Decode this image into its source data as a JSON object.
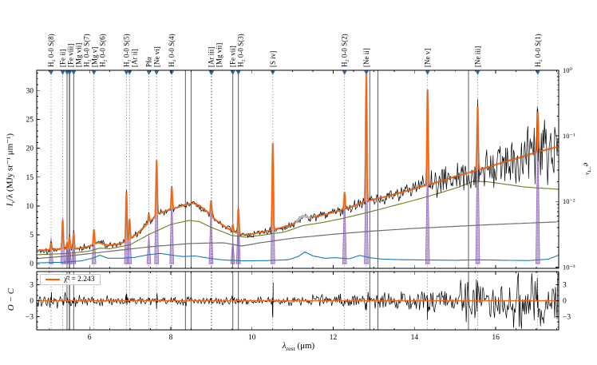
{
  "labels": {
    "xlabel": {
      "main": "λ",
      "sub": "rest",
      "unit": " (μm)"
    },
    "ylabel_main": {
      "pre": "I",
      "sub": "ν",
      "post": "/λ (MJy sr⁻¹ μm⁻¹)"
    },
    "ylabel_resid": "O − C",
    "ylabel_right": {
      "pre": "e",
      "sup": "−τ",
      "supsub": "λ"
    }
  },
  "legend": {
    "label": "χ̄² = 2.243"
  },
  "colors": {
    "data": "#000000",
    "model": "#ff6100",
    "model_masked": "#b9b9b9",
    "component_olive": "#6d7d22",
    "component_blue": "#1f77b4",
    "component_purple": "#9467bd",
    "attenuation": "#6e6e6e",
    "line_marker": "#3465a4",
    "vline_dotted": "#8a8a8a",
    "vline_solid": "#4a4a4a"
  },
  "chart_data": {
    "type": "line",
    "title": "",
    "xlabel": "λ_rest (μm)",
    "ylabel_left": "I_ν/λ (MJy sr⁻¹ μm⁻¹)",
    "ylabel_right": "e^−τ_λ",
    "ylabel_residual": "O − C",
    "xlim": [
      4.7,
      17.55
    ],
    "ylim_main": [
      -0.8,
      33.5
    ],
    "ylim_residual": [
      -5.5,
      5.5
    ],
    "right_axis_log_lim": [
      -3.02,
      0
    ],
    "x_ticks": [
      6,
      8,
      10,
      12,
      14,
      16
    ],
    "y_ticks_main": [
      0,
      5,
      10,
      15,
      20,
      25,
      30
    ],
    "y_ticks_residual": [
      -3,
      0,
      3
    ],
    "right_ticks": [
      "10⁰",
      "10⁻¹",
      "10⁻²",
      "10⁻³"
    ],
    "right_ticks_exponents": [
      0,
      -1,
      -2,
      -3
    ],
    "chi2": 2.243,
    "emission_lines": [
      {
        "label": "H₂ 0-0 S(8)",
        "wavelength": 5.053,
        "style": "dotted",
        "model_amp": 1.2,
        "line_peak": 4.5
      },
      {
        "label": "[Fe ii]",
        "wavelength": 5.34,
        "style": "dotted",
        "model_amp": 5.0,
        "line_peak": 8.0
      },
      {
        "label": "[Fe viii]",
        "wavelength": 5.447,
        "style": "solid",
        "model_amp": 1.0,
        "line_peak": 3.5
      },
      {
        "label": "[Mg vii]",
        "wavelength": 5.503,
        "style": "solid",
        "model_amp": 1.2,
        "line_peak": 4.0
      },
      {
        "label": "H₂ 0-0 S(7)",
        "wavelength": 5.511,
        "style": "solid",
        "model_amp": 1.0,
        "line_peak": 0
      },
      {
        "label": "[Mg v]",
        "wavelength": 5.61,
        "style": "solid",
        "model_amp": 2.8,
        "line_peak": 6.0
      },
      {
        "label": "H₂ 0-0 S(6)",
        "wavelength": 6.109,
        "style": "dotted",
        "model_amp": 2.6,
        "line_peak": 5.8
      },
      {
        "label": "H₂ 0-0 S(5)",
        "wavelength": 6.909,
        "style": "dotted",
        "model_amp": 8.5,
        "line_peak": 11.5
      },
      {
        "label": "[Ar ii]",
        "wavelength": 6.985,
        "style": "dotted",
        "model_amp": 3.5,
        "line_peak": 7.0
      },
      {
        "label": "Pfα",
        "wavelength": 7.46,
        "style": "dotted",
        "model_amp": 1.5,
        "line_peak": 5.0
      },
      {
        "label": "[Ne vi]",
        "wavelength": 7.652,
        "style": "dotted",
        "model_amp": 9.5,
        "line_peak": 18.0
      },
      {
        "label": "H₂ 0-0 S(4)",
        "wavelength": 8.025,
        "style": "dotted",
        "model_amp": 3.8,
        "line_peak": 12.8
      },
      {
        "label": "[Ar iii]",
        "wavelength": 8.991,
        "style": "dotted",
        "model_amp": 2.3,
        "line_peak": 10.2
      },
      {
        "label": "[Mg vii]",
        "wavelength": 9.009,
        "style": "dotted",
        "model_amp": 0.8,
        "line_peak": 0
      },
      {
        "label": "[Fe vii]",
        "wavelength": 9.527,
        "style": "solid",
        "model_amp": 1.0,
        "line_peak": 4.0
      },
      {
        "label": "H₂ 0-0 S(3)",
        "wavelength": 9.665,
        "style": "solid",
        "model_amp": 4.3,
        "line_peak": 9.4
      },
      {
        "label": "[S iv]",
        "wavelength": 10.511,
        "style": "dotted",
        "model_amp": 15.0,
        "line_peak": 20.7
      },
      {
        "label": "H₂ 0-0 S(2)",
        "wavelength": 12.279,
        "style": "dotted",
        "model_amp": 2.8,
        "line_peak": 12.2
      },
      {
        "label": "[Ne ii]",
        "wavelength": 12.814,
        "style": "dotted",
        "model_amp": 22.0,
        "line_peak": 21.5
      },
      {
        "label": "[Ne v]",
        "wavelength": 14.322,
        "style": "dotted",
        "model_amp": 16.5,
        "line_peak": 19.3
      },
      {
        "label": "[Ne iii]",
        "wavelength": 15.555,
        "style": "dotted",
        "model_amp": 11.0,
        "line_peak": 26.0
      },
      {
        "label": "H₂ 0-0 S(1)",
        "wavelength": 17.035,
        "style": "dotted",
        "model_amp": 7.0,
        "line_peak": 24.5
      }
    ],
    "extra_solid_lines": [
      8.36,
      8.5,
      12.9,
      13.1,
      15.33
    ],
    "masked_regions": [
      [
        11.08,
        11.45
      ]
    ],
    "model_continuum": [
      [
        4.7,
        2.3
      ],
      [
        5.0,
        2.4
      ],
      [
        5.3,
        2.55
      ],
      [
        5.7,
        2.6
      ],
      [
        6.0,
        3.0
      ],
      [
        6.22,
        3.7
      ],
      [
        6.45,
        3.2
      ],
      [
        6.7,
        3.35
      ],
      [
        6.95,
        4.0
      ],
      [
        7.2,
        5.4
      ],
      [
        7.5,
        7.4
      ],
      [
        7.7,
        8.7
      ],
      [
        7.9,
        9.2
      ],
      [
        8.1,
        9.6
      ],
      [
        8.3,
        10.1
      ],
      [
        8.55,
        10.5
      ],
      [
        8.7,
        10.1
      ],
      [
        8.9,
        9.0
      ],
      [
        9.1,
        7.6
      ],
      [
        9.4,
        6.1
      ],
      [
        9.7,
        5.1
      ],
      [
        9.9,
        5.0
      ],
      [
        10.1,
        5.3
      ],
      [
        10.4,
        5.7
      ],
      [
        10.7,
        6.2
      ],
      [
        11.0,
        6.8
      ],
      [
        11.25,
        8.3
      ],
      [
        11.4,
        8.0
      ],
      [
        11.6,
        8.2
      ],
      [
        11.9,
        8.7
      ],
      [
        12.2,
        9.3
      ],
      [
        12.5,
        10.0
      ],
      [
        12.8,
        10.8
      ],
      [
        13.1,
        11.3
      ],
      [
        13.4,
        11.8
      ],
      [
        13.8,
        12.6
      ],
      [
        14.2,
        13.4
      ],
      [
        14.6,
        14.2
      ],
      [
        15.0,
        15.1
      ],
      [
        15.4,
        15.9
      ],
      [
        15.8,
        16.7
      ],
      [
        16.2,
        17.6
      ],
      [
        16.6,
        18.4
      ],
      [
        17.0,
        19.3
      ],
      [
        17.55,
        20.3
      ]
    ],
    "component_olive": [
      [
        4.7,
        1.55
      ],
      [
        5.5,
        1.8
      ],
      [
        6.0,
        2.2
      ],
      [
        6.25,
        2.7
      ],
      [
        6.5,
        2.6
      ],
      [
        7.0,
        3.3
      ],
      [
        7.5,
        5.2
      ],
      [
        8.0,
        6.8
      ],
      [
        8.45,
        7.5
      ],
      [
        8.7,
        7.3
      ],
      [
        9.0,
        6.3
      ],
      [
        9.5,
        4.9
      ],
      [
        9.85,
        4.6
      ],
      [
        10.3,
        5.0
      ],
      [
        10.8,
        5.5
      ],
      [
        11.25,
        6.6
      ],
      [
        11.7,
        7.1
      ],
      [
        12.2,
        7.8
      ],
      [
        12.8,
        8.8
      ],
      [
        13.4,
        9.9
      ],
      [
        14.0,
        11.0
      ],
      [
        14.6,
        12.2
      ],
      [
        15.1,
        13.3
      ],
      [
        15.45,
        14.3
      ],
      [
        15.8,
        14.2
      ],
      [
        16.2,
        13.8
      ],
      [
        16.7,
        13.3
      ],
      [
        17.1,
        13.1
      ],
      [
        17.55,
        12.9
      ]
    ],
    "component_blue": [
      [
        4.7,
        0.15
      ],
      [
        5.3,
        0.25
      ],
      [
        5.8,
        0.5
      ],
      [
        6.1,
        1.0
      ],
      [
        6.25,
        1.5
      ],
      [
        6.45,
        0.95
      ],
      [
        6.8,
        0.95
      ],
      [
        7.1,
        1.1
      ],
      [
        7.45,
        1.55
      ],
      [
        7.75,
        1.8
      ],
      [
        8.0,
        1.5
      ],
      [
        8.3,
        1.25
      ],
      [
        8.6,
        1.35
      ],
      [
        8.9,
        1.0
      ],
      [
        9.3,
        0.65
      ],
      [
        9.8,
        0.5
      ],
      [
        10.4,
        0.55
      ],
      [
        10.9,
        0.7
      ],
      [
        11.15,
        1.3
      ],
      [
        11.3,
        2.05
      ],
      [
        11.5,
        1.35
      ],
      [
        11.8,
        0.95
      ],
      [
        12.05,
        1.05
      ],
      [
        12.4,
        0.85
      ],
      [
        12.65,
        1.45
      ],
      [
        12.9,
        1.05
      ],
      [
        13.2,
        0.8
      ],
      [
        13.7,
        0.7
      ],
      [
        14.3,
        0.65
      ],
      [
        15.0,
        0.6
      ],
      [
        15.6,
        0.68
      ],
      [
        16.2,
        0.6
      ],
      [
        16.8,
        0.55
      ],
      [
        17.3,
        0.8
      ],
      [
        17.55,
        1.5
      ]
    ],
    "attenuation_log10": [
      [
        4.7,
        -2.87
      ],
      [
        5.5,
        -2.83
      ],
      [
        6.5,
        -2.76
      ],
      [
        7.5,
        -2.69
      ],
      [
        8.5,
        -2.64
      ],
      [
        9.3,
        -2.63
      ],
      [
        9.75,
        -2.68
      ],
      [
        10.2,
        -2.63
      ],
      [
        11.0,
        -2.56
      ],
      [
        12.0,
        -2.5
      ],
      [
        13.0,
        -2.45
      ],
      [
        14.0,
        -2.41
      ],
      [
        15.0,
        -2.38
      ],
      [
        16.0,
        -2.35
      ],
      [
        17.55,
        -2.31
      ]
    ],
    "noise_sigma": [
      [
        4.7,
        0.3
      ],
      [
        6.0,
        0.28
      ],
      [
        8.0,
        0.3
      ],
      [
        9.7,
        0.26
      ],
      [
        11.0,
        0.32
      ],
      [
        12.0,
        0.45
      ],
      [
        13.0,
        0.6
      ],
      [
        14.0,
        0.85
      ],
      [
        15.0,
        1.15
      ],
      [
        15.8,
        1.6
      ],
      [
        16.5,
        2.4
      ],
      [
        17.1,
        3.0
      ],
      [
        17.55,
        3.4
      ]
    ],
    "residual_sigma": [
      [
        4.7,
        0.95
      ],
      [
        5.3,
        0.6
      ],
      [
        6.0,
        0.45
      ],
      [
        8.0,
        0.4
      ],
      [
        10.0,
        0.35
      ],
      [
        11.0,
        0.45
      ],
      [
        12.0,
        0.55
      ],
      [
        13.0,
        0.7
      ],
      [
        14.0,
        1.0
      ],
      [
        15.0,
        1.35
      ],
      [
        16.0,
        2.0
      ],
      [
        16.8,
        2.7
      ],
      [
        17.55,
        3.3
      ]
    ]
  }
}
